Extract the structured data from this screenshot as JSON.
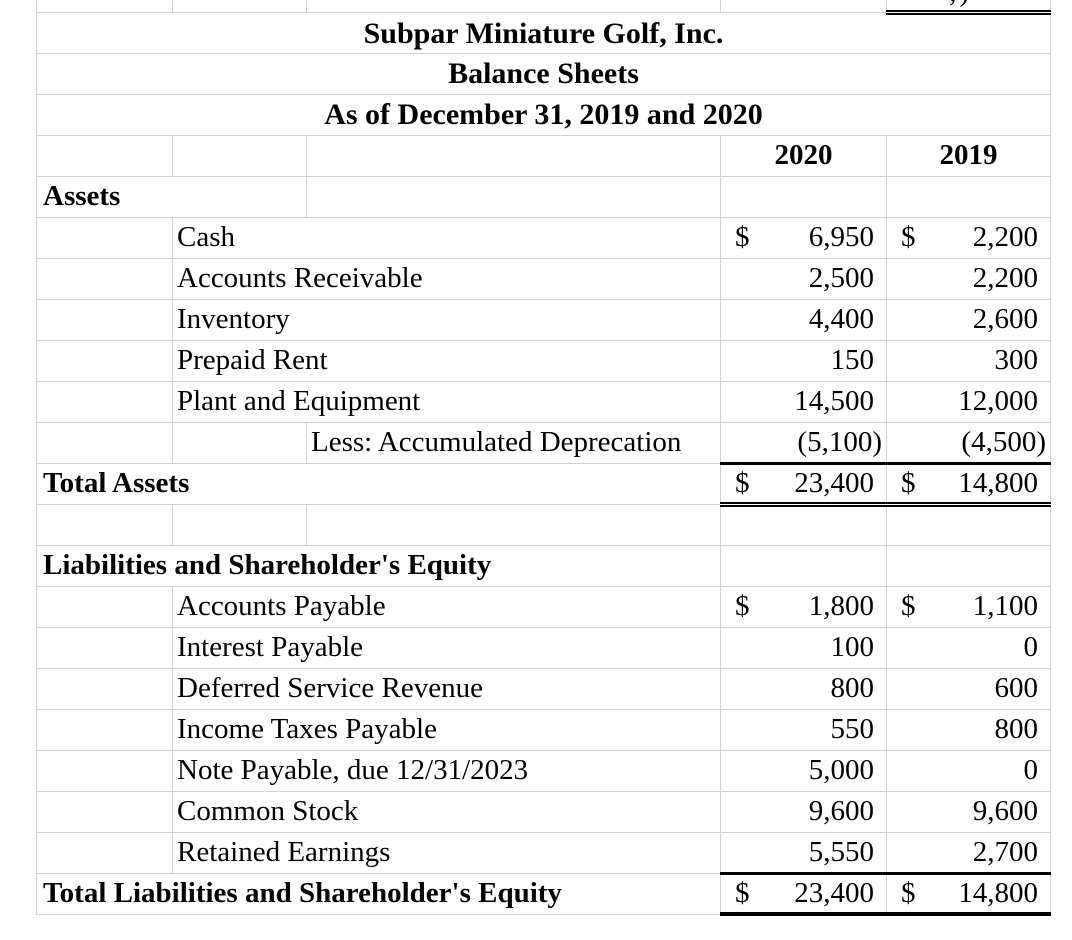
{
  "document": {
    "titles": [
      "Subpar Miniature Golf, Inc.",
      "Balance Sheets",
      "As of December 31, 2019 and 2020"
    ],
    "column_headers": {
      "col_2020": "2020",
      "col_2019": "2019"
    },
    "top_clipped_fragment": ",)",
    "rows": [
      {
        "kind": "section2",
        "label": "Assets"
      },
      {
        "kind": "detail",
        "label": "Cash",
        "y2020": {
          "sym": "$",
          "val": "6,950"
        },
        "y2019": {
          "sym": "$",
          "val": "2,200"
        }
      },
      {
        "kind": "detail",
        "label": "Accounts Receivable",
        "y2020": {
          "val": "2,500"
        },
        "y2019": {
          "val": "2,200"
        }
      },
      {
        "kind": "detail",
        "label": "Inventory",
        "y2020": {
          "val": "4,400"
        },
        "y2019": {
          "val": "2,600"
        }
      },
      {
        "kind": "detail",
        "label": "Prepaid Rent",
        "y2020": {
          "val": "150"
        },
        "y2019": {
          "val": "300"
        }
      },
      {
        "kind": "detail",
        "label": "Plant and Equipment",
        "y2020": {
          "val": "14,500"
        },
        "y2019": {
          "val": "12,000"
        }
      },
      {
        "kind": "detail-c",
        "label": "Less: Accumulated Deprecation",
        "y2020": {
          "val": "(5,100)",
          "parens": true
        },
        "y2019": {
          "val": "(4,500)",
          "parens": true
        },
        "underline": "medium"
      },
      {
        "kind": "total",
        "label": "Total Assets",
        "y2020": {
          "sym": "$",
          "val": "23,400"
        },
        "y2019": {
          "sym": "$",
          "val": "14,800"
        },
        "underline": "double"
      },
      {
        "kind": "blank"
      },
      {
        "kind": "section3",
        "label": "Liabilities and Shareholder's Equity"
      },
      {
        "kind": "detail",
        "label": "Accounts Payable",
        "y2020": {
          "sym": "$",
          "val": "1,800"
        },
        "y2019": {
          "sym": "$",
          "val": "1,100"
        }
      },
      {
        "kind": "detail",
        "label": "Interest Payable",
        "y2020": {
          "val": "100"
        },
        "y2019": {
          "val": "0"
        }
      },
      {
        "kind": "detail",
        "label": "Deferred Service Revenue",
        "y2020": {
          "val": "800"
        },
        "y2019": {
          "val": "600"
        }
      },
      {
        "kind": "detail",
        "label": "Income Taxes Payable",
        "y2020": {
          "val": "550"
        },
        "y2019": {
          "val": "800"
        }
      },
      {
        "kind": "detail",
        "label": "Note Payable, due 12/31/2023",
        "y2020": {
          "val": "5,000"
        },
        "y2019": {
          "val": "0"
        }
      },
      {
        "kind": "detail",
        "label": "Common Stock",
        "y2020": {
          "val": "9,600"
        },
        "y2019": {
          "val": "9,600"
        }
      },
      {
        "kind": "detail",
        "label": "Retained Earnings",
        "y2020": {
          "val": "5,550"
        },
        "y2019": {
          "val": "2,700"
        },
        "underline": "medium"
      },
      {
        "kind": "total",
        "label": "Total Liabilities and Shareholder's Equity",
        "y2020": {
          "sym": "$",
          "val": "23,400"
        },
        "y2019": {
          "sym": "$",
          "val": "14,800"
        },
        "underline": "thick"
      }
    ]
  }
}
